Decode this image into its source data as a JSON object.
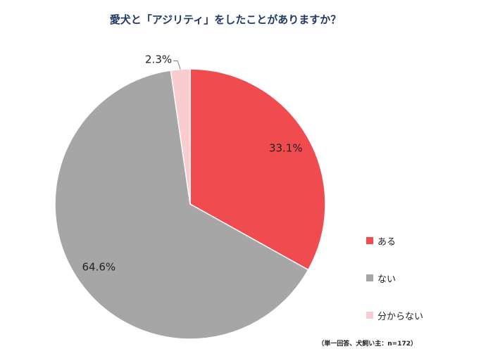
{
  "chart_data": {
    "type": "pie",
    "title": "愛犬と「アジリティ」をしたことがありますか？",
    "categories": [
      "ある",
      "ない",
      "分からない"
    ],
    "values": [
      33.1,
      64.6,
      2.3
    ],
    "data_labels": [
      "33.1%",
      "64.6%",
      "2.3%"
    ],
    "colors": [
      "#f04b4f",
      "#a6a6a6",
      "#f9cccf"
    ],
    "legend_position": "right",
    "start_angle": "12 o'clock, clockwise"
  },
  "footnote": "（単一回答、犬飼い主：n=172）"
}
